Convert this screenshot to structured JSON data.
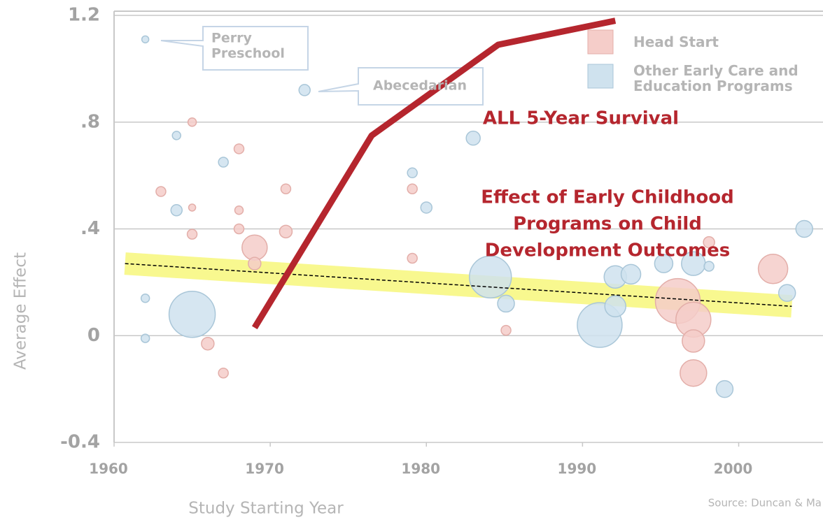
{
  "chart_data": {
    "type": "scatter",
    "title": [
      "Effect of Early Childhood",
      "Programs on Child",
      "Development Outcomes"
    ],
    "x_label": "Study Starting Year",
    "y_label": "Average Effect",
    "source": "Source: Duncan & Ma",
    "xlim": [
      1960,
      2005.4
    ],
    "ylim": [
      -0.4,
      1.2
    ],
    "xticks": [
      1960,
      1970,
      1980,
      1990,
      2000
    ],
    "yticks": [
      -0.4,
      0,
      {
        "value": 0.4,
        "label": ".4"
      },
      {
        "value": 0.8,
        "label": ".8"
      },
      1.2
    ],
    "grid": true,
    "series": [
      {
        "name": "Head Start",
        "color": "#f5cdc9",
        "x": [
          1965.0,
          1968.0,
          1963.0,
          1965.0,
          1968.0,
          1971.0,
          1965.0,
          1968.0,
          1971.0,
          1969.0,
          1969.0,
          1966.0,
          1967.0,
          1979.1,
          1979.1,
          1985.1,
          1996.1,
          1997.1,
          1997.1,
          1997.1,
          1998.1,
          2002.2
        ],
        "values": [
          0.8,
          0.7,
          0.54,
          0.48,
          0.47,
          0.55,
          0.38,
          0.4,
          0.39,
          0.33,
          0.27,
          -0.03,
          -0.14,
          0.55,
          0.29,
          0.02,
          0.13,
          0.06,
          -0.02,
          -0.14,
          0.35,
          0.25
        ],
        "sizes": [
          6,
          7,
          7,
          5,
          6,
          7,
          7,
          7,
          9,
          18,
          9,
          9,
          7,
          7,
          7,
          7,
          32,
          25,
          16,
          19,
          8,
          21
        ]
      },
      {
        "name": "Other Early Care and Education Programs",
        "color": "#cfe2ee",
        "x": [
          1962.0,
          1972.2,
          1964.0,
          1967.0,
          1964.0,
          1962.0,
          1962.0,
          1965.0,
          1979.1,
          1980.0,
          1983.0,
          1984.1,
          1985.1,
          1991.1,
          1992.1,
          1992.1,
          1993.1,
          1995.2,
          1997.1,
          1998.1,
          1999.1,
          2003.1,
          2004.2
        ],
        "values": [
          1.11,
          0.92,
          0.75,
          0.65,
          0.47,
          0.14,
          -0.01,
          0.08,
          0.61,
          0.48,
          0.74,
          0.22,
          0.12,
          0.04,
          0.22,
          0.11,
          0.23,
          0.27,
          0.27,
          0.26,
          -0.2,
          0.16,
          0.4
        ],
        "sizes": [
          5,
          8,
          6,
          7,
          8,
          6,
          6,
          33,
          7,
          8,
          10,
          30,
          12,
          32,
          16,
          15,
          14,
          13,
          17,
          7,
          12,
          12,
          12
        ]
      }
    ],
    "lines": [
      {
        "name": "ALL 5-Year Survival",
        "color": "#b5262e",
        "x": [
          1969.0,
          1976.5,
          1984.6,
          1992.1
        ],
        "values": [
          0.03,
          0.75,
          1.09,
          1.18
        ]
      }
    ],
    "trend": {
      "x": [
        1960.7,
        2003.4
      ],
      "values": [
        0.27,
        0.11
      ],
      "color": "#000000",
      "band_color": "#f5f56a"
    },
    "annotations": [
      {
        "lines": [
          "Perry",
          "Preschool"
        ]
      },
      {
        "lines": [
          "Abecedarian"
        ]
      }
    ]
  }
}
